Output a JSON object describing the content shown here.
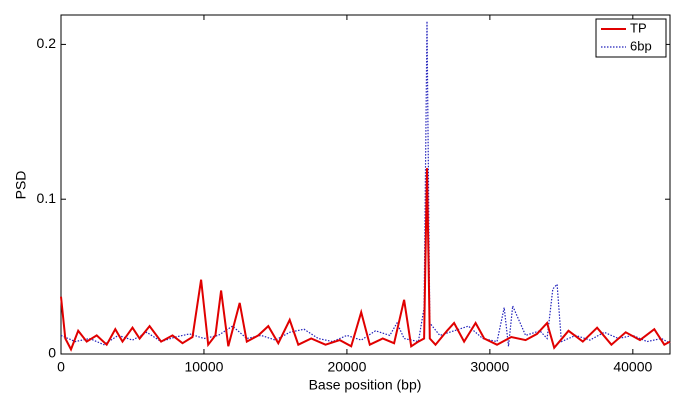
{
  "chart_data": {
    "type": "line",
    "xlabel": "Base position (bp)",
    "ylabel": "PSD",
    "xlim": [
      0,
      42600
    ],
    "ylim": [
      0,
      0.219
    ],
    "xticks": [
      0,
      10000,
      20000,
      30000,
      40000
    ],
    "yticks": [
      0,
      0.1,
      0.2
    ],
    "legend": "upper right",
    "series": [
      {
        "name": "TP",
        "color": "#e00000",
        "style": "solid",
        "x": [
          0,
          300,
          700,
          1200,
          1800,
          2500,
          3200,
          3800,
          4300,
          5000,
          5500,
          6200,
          7000,
          7800,
          8500,
          9200,
          9800,
          10300,
          10800,
          11200,
          11700,
          12500,
          13000,
          13800,
          14500,
          15200,
          16000,
          16600,
          17500,
          18500,
          19500,
          20300,
          21000,
          21600,
          22500,
          23300,
          24000,
          24500,
          25000,
          25400,
          25600,
          25800,
          26200,
          27000,
          27500,
          28200,
          29000,
          29600,
          30500,
          31500,
          32500,
          33300,
          34000,
          34500,
          35500,
          36500,
          37500,
          38500,
          39500,
          40500,
          41500,
          42200,
          42600
        ],
        "values": [
          0.037,
          0.01,
          0.003,
          0.015,
          0.008,
          0.012,
          0.006,
          0.016,
          0.008,
          0.017,
          0.01,
          0.018,
          0.008,
          0.012,
          0.007,
          0.011,
          0.048,
          0.006,
          0.012,
          0.041,
          0.005,
          0.033,
          0.008,
          0.012,
          0.018,
          0.007,
          0.022,
          0.006,
          0.01,
          0.006,
          0.009,
          0.005,
          0.027,
          0.006,
          0.01,
          0.007,
          0.035,
          0.005,
          0.008,
          0.01,
          0.12,
          0.01,
          0.006,
          0.015,
          0.02,
          0.008,
          0.02,
          0.01,
          0.006,
          0.011,
          0.009,
          0.013,
          0.02,
          0.004,
          0.015,
          0.008,
          0.017,
          0.006,
          0.014,
          0.009,
          0.016,
          0.006,
          0.008
        ]
      },
      {
        "name": "6bp",
        "color": "#2222bb",
        "style": "dotted",
        "x": [
          0,
          1000,
          2000,
          3000,
          4000,
          5000,
          6000,
          7000,
          8000,
          9000,
          10000,
          11000,
          12000,
          13000,
          14000,
          15000,
          16000,
          17000,
          18000,
          19000,
          20000,
          21000,
          22000,
          23000,
          23500,
          24000,
          25000,
          25400,
          25600,
          25800,
          26500,
          27500,
          28500,
          29500,
          30500,
          31000,
          31300,
          31600,
          32500,
          33500,
          34000,
          34400,
          34700,
          35000,
          36000,
          37000,
          38000,
          39000,
          40000,
          41000,
          42000,
          42600
        ],
        "values": [
          0.012,
          0.008,
          0.01,
          0.006,
          0.012,
          0.009,
          0.014,
          0.008,
          0.011,
          0.013,
          0.01,
          0.012,
          0.018,
          0.01,
          0.012,
          0.009,
          0.014,
          0.016,
          0.01,
          0.008,
          0.012,
          0.009,
          0.015,
          0.012,
          0.02,
          0.01,
          0.008,
          0.03,
          0.215,
          0.02,
          0.012,
          0.015,
          0.018,
          0.01,
          0.008,
          0.03,
          0.005,
          0.031,
          0.012,
          0.015,
          0.01,
          0.042,
          0.045,
          0.008,
          0.012,
          0.009,
          0.014,
          0.01,
          0.012,
          0.008,
          0.01,
          0.007
        ]
      }
    ]
  }
}
